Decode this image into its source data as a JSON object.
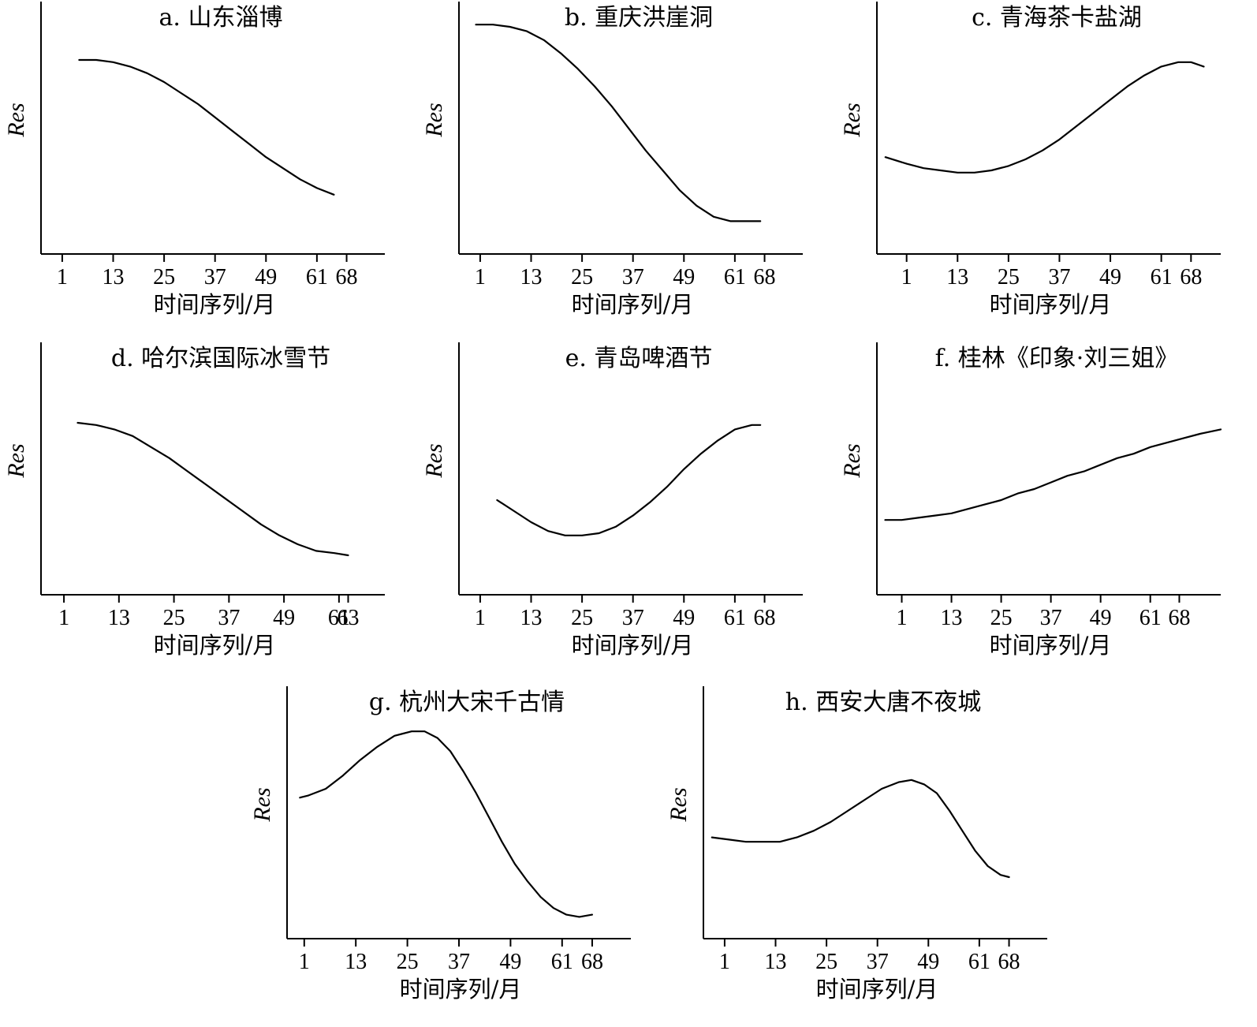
{
  "chart_data": [
    {
      "type": "line",
      "title": "a. 山东淄博",
      "xlabel": "时间序列/月",
      "ylabel": "Res",
      "x_ticks": [
        "1",
        "13",
        "25",
        "37",
        "49",
        "61",
        "68"
      ],
      "x": [
        5,
        9,
        13,
        17,
        21,
        25,
        29,
        33,
        37,
        41,
        45,
        49,
        53,
        57,
        61,
        65
      ],
      "y": [
        0.8,
        0.8,
        0.79,
        0.77,
        0.74,
        0.7,
        0.65,
        0.6,
        0.54,
        0.48,
        0.42,
        0.36,
        0.31,
        0.26,
        0.22,
        0.19
      ],
      "xlim": [
        -4,
        77
      ],
      "ylim": [
        0,
        1
      ],
      "grid": false
    },
    {
      "type": "line",
      "title": "b. 重庆洪崖洞",
      "xlabel": "时间序列/月",
      "ylabel": "Res",
      "x_ticks": [
        "1",
        "13",
        "25",
        "37",
        "49",
        "61",
        "68"
      ],
      "x": [
        0,
        4,
        8,
        12,
        16,
        20,
        24,
        28,
        32,
        36,
        40,
        44,
        48,
        52,
        56,
        60,
        64,
        67
      ],
      "y": [
        0.96,
        0.96,
        0.95,
        0.93,
        0.89,
        0.83,
        0.76,
        0.68,
        0.59,
        0.49,
        0.39,
        0.3,
        0.21,
        0.14,
        0.09,
        0.07,
        0.07,
        0.07
      ],
      "xlim": [
        -4,
        77
      ],
      "ylim": [
        0,
        1
      ],
      "grid": false
    },
    {
      "type": "line",
      "title": "c. 青海茶卡盐湖",
      "xlabel": "时间序列/月",
      "ylabel": "Res",
      "x_ticks": [
        "1",
        "13",
        "25",
        "37",
        "49",
        "61",
        "68"
      ],
      "x": [
        -4,
        1,
        5,
        9,
        13,
        17,
        21,
        25,
        29,
        33,
        37,
        41,
        45,
        49,
        53,
        57,
        61,
        65,
        68,
        71
      ],
      "y": [
        0.36,
        0.33,
        0.31,
        0.3,
        0.29,
        0.29,
        0.3,
        0.32,
        0.35,
        0.39,
        0.44,
        0.5,
        0.56,
        0.62,
        0.68,
        0.73,
        0.77,
        0.79,
        0.79,
        0.77
      ],
      "xlim": [
        -6,
        75
      ],
      "ylim": [
        0,
        1
      ],
      "grid": false
    },
    {
      "type": "line",
      "title": "d. 哈尔滨国际冰雪节",
      "xlabel": "时间序列/月",
      "ylabel": "Res",
      "x_ticks": [
        "1",
        "13",
        "25",
        "37",
        "49",
        "61",
        "63"
      ],
      "x": [
        4,
        8,
        12,
        16,
        20,
        24,
        28,
        32,
        36,
        40,
        44,
        48,
        52,
        56,
        60,
        63
      ],
      "y": [
        0.7,
        0.69,
        0.67,
        0.64,
        0.59,
        0.54,
        0.48,
        0.42,
        0.36,
        0.3,
        0.24,
        0.19,
        0.15,
        0.12,
        0.11,
        0.1
      ],
      "xlim": [
        -4,
        71
      ],
      "ylim": [
        0,
        1
      ],
      "grid": false
    },
    {
      "type": "line",
      "title": "e. 青岛啤酒节",
      "xlabel": "时间序列/月",
      "ylabel": "Res",
      "x_ticks": [
        "1",
        "13",
        "25",
        "37",
        "49",
        "61",
        "68"
      ],
      "x": [
        5,
        9,
        13,
        17,
        21,
        25,
        29,
        33,
        37,
        41,
        45,
        49,
        53,
        57,
        61,
        65,
        67
      ],
      "y": [
        0.35,
        0.3,
        0.25,
        0.21,
        0.19,
        0.19,
        0.2,
        0.23,
        0.28,
        0.34,
        0.41,
        0.49,
        0.56,
        0.62,
        0.67,
        0.69,
        0.69
      ],
      "xlim": [
        -4,
        77
      ],
      "ylim": [
        0,
        1
      ],
      "grid": false
    },
    {
      "type": "line",
      "title": "f. 桂林《印象·刘三姐》",
      "xlabel": "时间序列/月",
      "ylabel": "Res",
      "x_ticks": [
        "1",
        "13",
        "25",
        "37",
        "49",
        "61",
        "68"
      ],
      "x": [
        -3,
        1,
        5,
        9,
        13,
        17,
        21,
        25,
        29,
        33,
        37,
        41,
        45,
        49,
        53,
        57,
        61,
        65,
        69,
        73,
        78
      ],
      "y": [
        0.26,
        0.26,
        0.27,
        0.28,
        0.29,
        0.31,
        0.33,
        0.35,
        0.38,
        0.4,
        0.43,
        0.46,
        0.48,
        0.51,
        0.54,
        0.56,
        0.59,
        0.61,
        0.63,
        0.65,
        0.67
      ],
      "xlim": [
        -5,
        78
      ],
      "ylim": [
        0,
        1
      ],
      "grid": false
    },
    {
      "type": "line",
      "title": "g. 杭州大宋千古情",
      "xlabel": "时间序列/月",
      "ylabel": "Res",
      "x_ticks": [
        "1",
        "13",
        "25",
        "37",
        "49",
        "61",
        "68"
      ],
      "x": [
        0,
        2,
        6,
        10,
        14,
        18,
        22,
        26,
        29,
        32,
        35,
        38,
        41,
        44,
        47,
        50,
        53,
        56,
        59,
        62,
        65,
        68
      ],
      "y": [
        0.56,
        0.57,
        0.6,
        0.66,
        0.73,
        0.79,
        0.84,
        0.86,
        0.86,
        0.83,
        0.77,
        0.68,
        0.58,
        0.47,
        0.36,
        0.26,
        0.18,
        0.11,
        0.06,
        0.03,
        0.02,
        0.03
      ],
      "xlim": [
        -3,
        77
      ],
      "ylim": [
        0,
        1
      ],
      "grid": false
    },
    {
      "type": "line",
      "title": "h. 西安大唐不夜城",
      "xlabel": "时间序列/月",
      "ylabel": "Res",
      "x_ticks": [
        "1",
        "13",
        "25",
        "37",
        "49",
        "61",
        "68"
      ],
      "x": [
        -2,
        2,
        6,
        10,
        14,
        18,
        22,
        26,
        30,
        34,
        38,
        42,
        45,
        48,
        51,
        54,
        57,
        60,
        63,
        66,
        68
      ],
      "y": [
        0.38,
        0.37,
        0.36,
        0.36,
        0.36,
        0.38,
        0.41,
        0.45,
        0.5,
        0.55,
        0.6,
        0.63,
        0.64,
        0.62,
        0.58,
        0.5,
        0.41,
        0.32,
        0.25,
        0.21,
        0.2
      ],
      "xlim": [
        -4,
        77
      ],
      "ylim": [
        0,
        1
      ],
      "grid": false
    }
  ]
}
